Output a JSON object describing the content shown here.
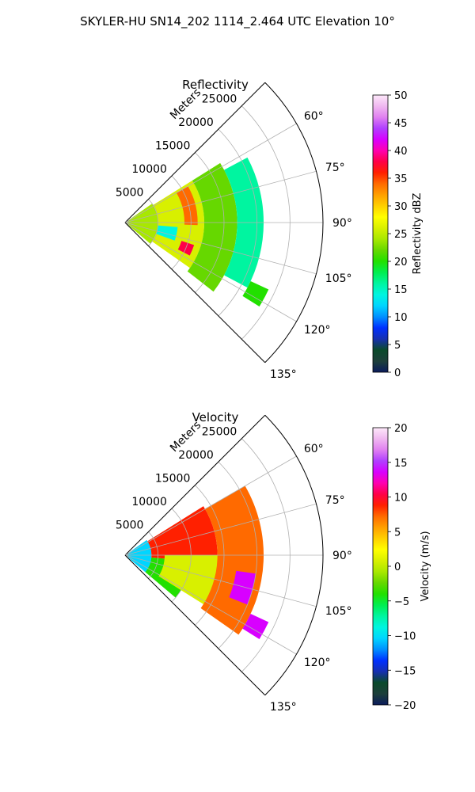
{
  "suptitle": "SKYLER-HU  SN14_202  1114_2.464 UTC Elevation 10°",
  "chart_data": [
    {
      "type": "heatmap",
      "subtype": "polar-ppi-sector",
      "title": "Reflectivity",
      "radial_label": "Meters",
      "r_ticks": [
        "5000",
        "10000",
        "15000",
        "20000",
        "25000"
      ],
      "r_max": 30000,
      "theta_range_deg": [
        45,
        135
      ],
      "theta_ticks": [
        "60°",
        "75°",
        "90°",
        "105°",
        "120°",
        "135°"
      ],
      "colorbar": {
        "label": "Reflectivity dBZ",
        "min": 0,
        "max": 50,
        "ticks": [
          "0",
          "5",
          "10",
          "15",
          "20",
          "25",
          "30",
          "35",
          "40",
          "45",
          "50"
        ],
        "colormap": "pyart_HomeyerRainbow"
      },
      "regions": [
        {
          "r": [
            0,
            5000
          ],
          "theta": [
            55,
            130
          ],
          "value": 24
        },
        {
          "r": [
            5000,
            12000
          ],
          "theta": [
            58,
            125
          ],
          "value": 27
        },
        {
          "r": [
            9000,
            11000
          ],
          "theta": [
            60,
            92
          ],
          "value": 34
        },
        {
          "r": [
            9000,
            11000
          ],
          "theta": [
            108,
            117
          ],
          "value": 38
        },
        {
          "r": [
            5000,
            8000
          ],
          "theta": [
            95,
            110
          ],
          "value": 14
        },
        {
          "r": [
            12000,
            17000
          ],
          "theta": [
            58,
            128
          ],
          "value": 22
        },
        {
          "r": [
            17000,
            21000
          ],
          "theta": [
            62,
            118
          ],
          "value": 17
        },
        {
          "r": [
            21000,
            24000
          ],
          "theta": [
            115,
            122
          ],
          "value": 21
        }
      ]
    },
    {
      "type": "heatmap",
      "subtype": "polar-ppi-sector",
      "title": "Velocity",
      "radial_label": "Meters",
      "r_ticks": [
        "5000",
        "10000",
        "15000",
        "20000",
        "25000"
      ],
      "r_max": 30000,
      "theta_range_deg": [
        45,
        135
      ],
      "theta_ticks": [
        "60°",
        "75°",
        "90°",
        "105°",
        "120°",
        "135°"
      ],
      "colorbar": {
        "label": "Velocity (m/s)",
        "min": -20,
        "max": 20,
        "ticks": [
          "-20",
          "-15",
          "-10",
          "-5",
          "0",
          "5",
          "10",
          "15",
          "20"
        ],
        "colormap": "pyart_HomeyerRainbow"
      },
      "regions": [
        {
          "r": [
            0,
            4000
          ],
          "theta": [
            55,
            130
          ],
          "value": -9
        },
        {
          "r": [
            4000,
            10000
          ],
          "theta": [
            95,
            130
          ],
          "value": -4
        },
        {
          "r": [
            4000,
            14000
          ],
          "theta": [
            58,
            95
          ],
          "value": 9
        },
        {
          "r": [
            6000,
            15000
          ],
          "theta": [
            90,
            122
          ],
          "value": 2
        },
        {
          "r": [
            14000,
            21000
          ],
          "theta": [
            60,
            125
          ],
          "value": 8
        },
        {
          "r": [
            17000,
            20000
          ],
          "theta": [
            98,
            112
          ],
          "value": 14
        },
        {
          "r": [
            21000,
            24000
          ],
          "theta": [
            115,
            122
          ],
          "value": 15
        }
      ]
    }
  ]
}
